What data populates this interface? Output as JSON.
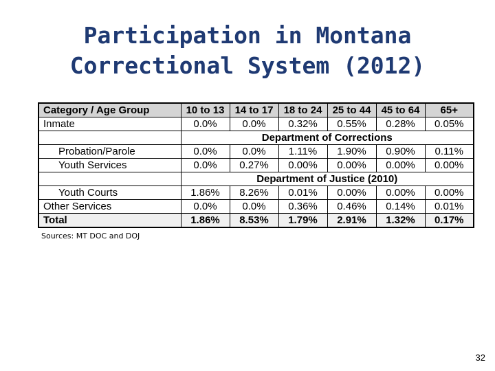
{
  "slide": {
    "title_line1": "Participation in Montana",
    "title_line2": "Correctional System (2012)",
    "sources": "Sources: MT DOC and DOJ",
    "page_number": "32"
  },
  "table": {
    "headers": [
      "Category / Age Group",
      "10 to 13",
      "14 to 17",
      "18 to 24",
      "25 to 44",
      "45 to 64",
      "65+"
    ],
    "inmate": [
      "Inmate",
      "0.0%",
      "0.0%",
      "0.32%",
      "0.55%",
      "0.28%",
      "0.05%"
    ],
    "section_doc": "Department of Corrections",
    "probation": [
      "Probation/Parole",
      "0.0%",
      "0.0%",
      "1.11%",
      "1.90%",
      "0.90%",
      "0.11%"
    ],
    "youth_services": [
      "Youth Services",
      "0.0%",
      "0.27%",
      "0.00%",
      "0.00%",
      "0.00%",
      "0.00%"
    ],
    "section_doj": "Department of Justice (2010)",
    "youth_courts": [
      "Youth Courts",
      "1.86%",
      "8.26%",
      "0.01%",
      "0.00%",
      "0.00%",
      "0.00%"
    ],
    "other_services": [
      "Other Services",
      "0.0%",
      "0.0%",
      "0.36%",
      "0.46%",
      "0.14%",
      "0.01%"
    ],
    "total": [
      "Total",
      "1.86%",
      "8.53%",
      "1.79%",
      "2.91%",
      "1.32%",
      "0.17%"
    ]
  }
}
